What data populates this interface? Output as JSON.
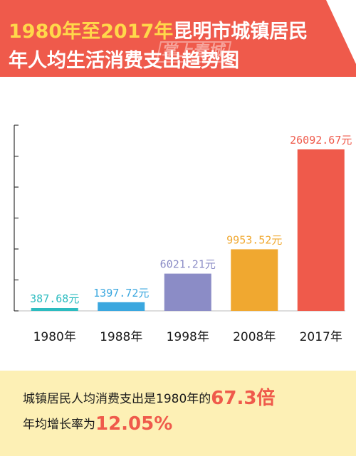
{
  "header": {
    "title_highlight": "1980年至2017年",
    "title_rest": "昆明市城镇居民",
    "title_line2": "年人均生活消费支出趋势图",
    "watermark": "掌上春城"
  },
  "colors": {
    "banner": "#ef5a4b",
    "banner_highlight": "#ffd84a",
    "summary_bg": "#fdf0b5",
    "accent": "#ef5a4b"
  },
  "chart_data": {
    "type": "bar",
    "title": "1980年至2017年昆明市城镇居民年人均生活消费支出趋势图",
    "categories": [
      "1980年",
      "1988年",
      "1998年",
      "2008年",
      "2017年"
    ],
    "values": [
      387.68,
      1397.72,
      6021.21,
      9953.52,
      26092.67
    ],
    "value_labels": [
      "387.68元",
      "1397.72元",
      "6021.21元",
      "9953.52元",
      "26092.67元"
    ],
    "bar_colors": [
      "#2cbcc0",
      "#3aa7df",
      "#8b8cc6",
      "#f0a830",
      "#ef5a4b"
    ],
    "ylim": [
      0,
      30000
    ],
    "grid": false,
    "legend": "none"
  },
  "summary": {
    "line1_text": "城镇居民人均消费支出是1980年的",
    "line1_value": "67.3倍",
    "line2_text": "年均增长率为",
    "line2_value": "12.05%"
  }
}
